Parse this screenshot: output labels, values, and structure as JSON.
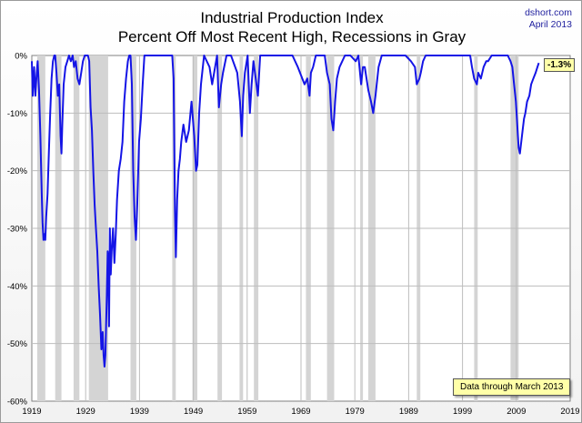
{
  "header": {
    "title_line1": "Industrial Production Index",
    "title_line2": "Percent Off Most Recent High, Recessions in Gray",
    "source": "dshort.com",
    "date": "April 2013"
  },
  "annotations": {
    "last_value": "-1.3%",
    "data_through": "Data through March 2013"
  },
  "colors": {
    "line": "#1414e6",
    "recession": "#d4d4d4",
    "grid": "#bdbdbd"
  },
  "chart_data": {
    "type": "line",
    "title": "Industrial Production Index — Percent Off Most Recent High, Recessions in Gray",
    "xlabel": "",
    "ylabel": "",
    "xlim": [
      "1919-01",
      "2019-01"
    ],
    "ylim": [
      -60,
      0
    ],
    "grid": true,
    "yticks": [
      "0%",
      "-10%",
      "-20%",
      "-30%",
      "-40%",
      "-50%",
      "-60%"
    ],
    "xticks": [
      "1919",
      "1929",
      "1939",
      "1949",
      "1959",
      "1969",
      "1979",
      "1989",
      "1999",
      "2009",
      "2019"
    ],
    "recessions": [
      [
        "1920-01",
        "1921-07"
      ],
      [
        "1923-05",
        "1924-07"
      ],
      [
        "1926-10",
        "1927-11"
      ],
      [
        "1929-08",
        "1933-03"
      ],
      [
        "1937-05",
        "1938-06"
      ],
      [
        "1945-02",
        "1945-10"
      ],
      [
        "1948-11",
        "1949-10"
      ],
      [
        "1953-07",
        "1954-05"
      ],
      [
        "1957-08",
        "1958-04"
      ],
      [
        "1960-04",
        "1961-02"
      ],
      [
        "1969-12",
        "1970-11"
      ],
      [
        "1973-11",
        "1975-03"
      ],
      [
        "1980-01",
        "1980-07"
      ],
      [
        "1981-07",
        "1982-11"
      ],
      [
        "1990-07",
        "1991-03"
      ],
      [
        "2001-03",
        "2001-11"
      ],
      [
        "2007-12",
        "2009-06"
      ]
    ],
    "series": [
      {
        "x": [
          "1919-01",
          "1919-03",
          "1919-06",
          "1919-09",
          "1919-12",
          "1920-02",
          "1920-05",
          "1920-08",
          "1920-11",
          "1921-01",
          "1921-03",
          "1921-05",
          "1921-07",
          "1921-09",
          "1921-12",
          "1922-03",
          "1922-06",
          "1922-09",
          "1922-12",
          "1923-03",
          "1923-05",
          "1923-08",
          "1923-11",
          "1924-02",
          "1924-05",
          "1924-07",
          "1924-09",
          "1924-12",
          "1925-04",
          "1925-08",
          "1925-12",
          "1926-04",
          "1926-08",
          "1926-11",
          "1927-03",
          "1927-07",
          "1927-11",
          "1928-03",
          "1928-07",
          "1928-11",
          "1929-03",
          "1929-06",
          "1929-09",
          "1929-12",
          "1930-03",
          "1930-06",
          "1930-09",
          "1930-12",
          "1931-03",
          "1931-06",
          "1931-09",
          "1931-12",
          "1932-03",
          "1932-05",
          "1932-07",
          "1932-09",
          "1932-12",
          "1933-02",
          "1933-03",
          "1933-05",
          "1933-07",
          "1933-09",
          "1933-11",
          "1934-02",
          "1934-05",
          "1934-08",
          "1934-11",
          "1935-03",
          "1935-07",
          "1935-11",
          "1936-03",
          "1936-07",
          "1936-11",
          "1937-02",
          "1937-05",
          "1937-08",
          "1937-11",
          "1938-02",
          "1938-05",
          "1938-08",
          "1938-12",
          "1939-04",
          "1939-08",
          "1939-12",
          "1940-06",
          "1940-12",
          "1941-06",
          "1942-01",
          "1943-01",
          "1944-06",
          "1945-02",
          "1945-05",
          "1945-08",
          "1945-10",
          "1946-01",
          "1946-04",
          "1946-07",
          "1946-10",
          "1947-03",
          "1947-09",
          "1948-03",
          "1948-09",
          "1949-03",
          "1949-07",
          "1949-10",
          "1950-02",
          "1950-06",
          "1951-01",
          "1952-01",
          "1952-07",
          "1953-06",
          "1953-10",
          "1954-03",
          "1954-07",
          "1955-03",
          "1956-01",
          "1957-03",
          "1957-09",
          "1958-01",
          "1958-04",
          "1958-08",
          "1959-02",
          "1959-07",
          "1959-11",
          "1960-03",
          "1960-08",
          "1961-01",
          "1961-06",
          "1962-06",
          "1963-06",
          "1964-06",
          "1965-06",
          "1966-06",
          "1967-06",
          "1968-06",
          "1969-09",
          "1970-03",
          "1970-08",
          "1970-11",
          "1971-04",
          "1971-10",
          "1972-06",
          "1973-06",
          "1973-11",
          "1974-05",
          "1974-09",
          "1975-01",
          "1975-05",
          "1975-09",
          "1976-03",
          "1977-03",
          "1978-03",
          "1979-03",
          "1979-09",
          "1980-03",
          "1980-07",
          "1980-11",
          "1981-07",
          "1982-01",
          "1982-06",
          "1982-11",
          "1983-06",
          "1984-01",
          "1985-06",
          "1986-06",
          "1987-06",
          "1988-06",
          "1989-06",
          "1990-03",
          "1990-07",
          "1991-01",
          "1991-04",
          "1991-09",
          "1992-03",
          "1993-03",
          "1994-06",
          "1995-06",
          "1996-06",
          "1997-06",
          "1998-06",
          "1999-06",
          "2000-06",
          "2000-10",
          "2001-03",
          "2001-09",
          "2001-12",
          "2002-06",
          "2002-12",
          "2003-06",
          "2003-10",
          "2004-06",
          "2005-06",
          "2006-06",
          "2007-06",
          "2007-12",
          "2008-04",
          "2008-08",
          "2008-12",
          "2009-03",
          "2009-06",
          "2009-09",
          "2009-12",
          "2010-03",
          "2010-06",
          "2010-09",
          "2011-01",
          "2011-06",
          "2011-10",
          "2012-03",
          "2012-08",
          "2012-12",
          "2013-03"
        ],
        "y": [
          -1,
          -7,
          -2,
          -7,
          -3,
          -1,
          -6,
          -14,
          -24,
          -29,
          -32,
          -31,
          -32,
          -28,
          -24,
          -17,
          -10,
          -4,
          -1,
          0,
          0,
          -3,
          -7,
          -5,
          -14,
          -17,
          -12,
          -5,
          -2,
          -1,
          0,
          -1,
          0,
          -2,
          -1,
          -4,
          -5,
          -3,
          -1,
          0,
          0,
          0,
          -1,
          -9,
          -13,
          -20,
          -26,
          -30,
          -34,
          -40,
          -45,
          -51,
          -48,
          -52,
          -54,
          -52,
          -42,
          -34,
          -35,
          -47,
          -30,
          -38,
          -34,
          -30,
          -36,
          -31,
          -25,
          -20,
          -18,
          -15,
          -8,
          -4,
          -1,
          0,
          0,
          -5,
          -20,
          -28,
          -32,
          -26,
          -15,
          -11,
          -5,
          0,
          0,
          0,
          0,
          0,
          0,
          0,
          0,
          -4,
          -27,
          -35,
          -25,
          -20,
          -18,
          -15,
          -12,
          -15,
          -13,
          -8,
          -14,
          -20,
          -19,
          -10,
          -5,
          0,
          -2,
          -5,
          0,
          -9,
          -5,
          -3,
          0,
          0,
          -3,
          -8,
          -14,
          -7,
          -3,
          0,
          -10,
          -5,
          -1,
          -4,
          -7,
          0,
          0,
          0,
          0,
          0,
          0,
          0,
          -2,
          -5,
          -4,
          -7,
          -3,
          -2,
          0,
          0,
          0,
          -3,
          -5,
          -11,
          -13,
          -8,
          -4,
          -2,
          0,
          0,
          -1,
          0,
          -5,
          -2,
          -2,
          -6,
          -8,
          -10,
          -7,
          -2,
          0,
          0,
          0,
          0,
          0,
          -1,
          -2,
          -5,
          -4,
          -3,
          -1,
          0,
          0,
          0,
          0,
          0,
          0,
          0,
          0,
          0,
          -2,
          -4,
          -5,
          -3,
          -4,
          -2,
          -1,
          -1,
          0,
          0,
          0,
          0,
          -1,
          -2,
          -5,
          -8,
          -12,
          -16,
          -17,
          -15,
          -13,
          -11,
          -10,
          -8,
          -7,
          -5,
          -4,
          -3,
          -2,
          -1.3
        ]
      }
    ]
  }
}
